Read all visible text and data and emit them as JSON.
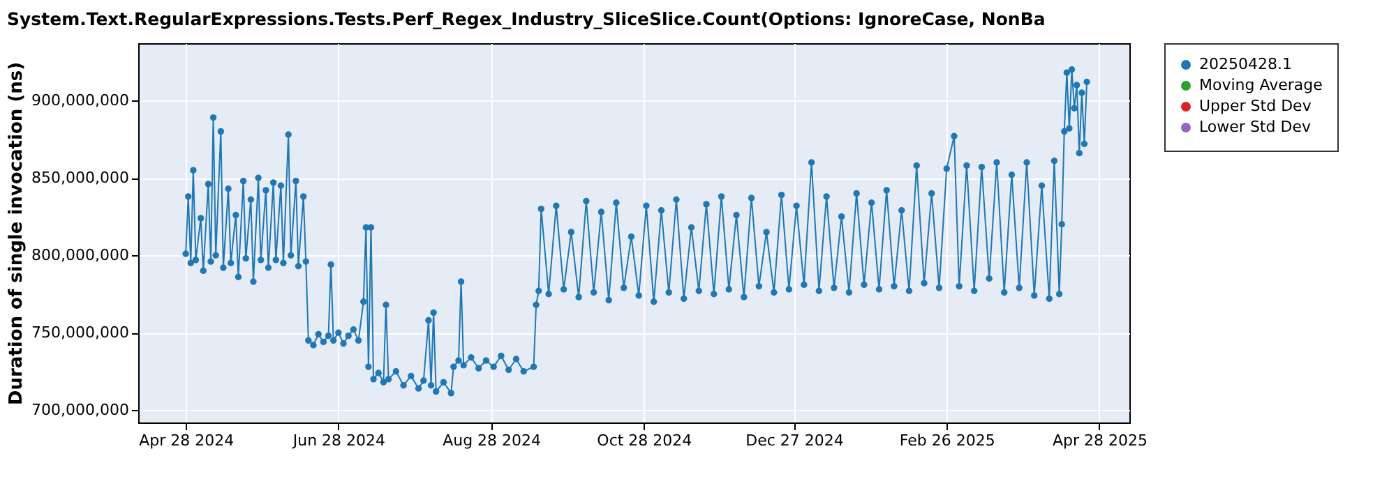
{
  "chart_data": {
    "type": "line",
    "title": "System.Text.RegularExpressions.Tests.Perf_Regex_Industry_SliceSlice.Count(Options: IgnoreCase, NonBa",
    "ylabel": "Duration of single invocation (ns)",
    "x": [
      "2024-04-28",
      "2024-04-29",
      "2024-04-30",
      "2024-05-01",
      "2024-05-02",
      "2024-05-04",
      "2024-05-05",
      "2024-05-07",
      "2024-05-08",
      "2024-05-09",
      "2024-05-10",
      "2024-05-12",
      "2024-05-13",
      "2024-05-15",
      "2024-05-16",
      "2024-05-18",
      "2024-05-19",
      "2024-05-21",
      "2024-05-22",
      "2024-05-24",
      "2024-05-25",
      "2024-05-27",
      "2024-05-28",
      "2024-05-30",
      "2024-05-31",
      "2024-06-02",
      "2024-06-03",
      "2024-06-05",
      "2024-06-06",
      "2024-06-08",
      "2024-06-09",
      "2024-06-11",
      "2024-06-12",
      "2024-06-14",
      "2024-06-15",
      "2024-06-16",
      "2024-06-18",
      "2024-06-20",
      "2024-06-22",
      "2024-06-24",
      "2024-06-25",
      "2024-06-26",
      "2024-06-28",
      "2024-06-30",
      "2024-07-02",
      "2024-07-04",
      "2024-07-06",
      "2024-07-08",
      "2024-07-09",
      "2024-07-10",
      "2024-07-11",
      "2024-07-12",
      "2024-07-14",
      "2024-07-16",
      "2024-07-17",
      "2024-07-18",
      "2024-07-21",
      "2024-07-24",
      "2024-07-27",
      "2024-07-30",
      "2024-08-01",
      "2024-08-03",
      "2024-08-04",
      "2024-08-05",
      "2024-08-06",
      "2024-08-09",
      "2024-08-12",
      "2024-08-13",
      "2024-08-15",
      "2024-08-16",
      "2024-08-17",
      "2024-08-20",
      "2024-08-23",
      "2024-08-26",
      "2024-08-29",
      "2024-09-01",
      "2024-09-04",
      "2024-09-07",
      "2024-09-10",
      "2024-09-14",
      "2024-09-15",
      "2024-09-16",
      "2024-09-17",
      "2024-09-20",
      "2024-09-23",
      "2024-09-26",
      "2024-09-29",
      "2024-10-02",
      "2024-10-05",
      "2024-10-08",
      "2024-10-11",
      "2024-10-14",
      "2024-10-17",
      "2024-10-20",
      "2024-10-23",
      "2024-10-26",
      "2024-10-29",
      "2024-11-01",
      "2024-11-04",
      "2024-11-07",
      "2024-11-10",
      "2024-11-13",
      "2024-11-16",
      "2024-11-19",
      "2024-11-22",
      "2024-11-25",
      "2024-11-28",
      "2024-12-01",
      "2024-12-04",
      "2024-12-07",
      "2024-12-10",
      "2024-12-13",
      "2024-12-16",
      "2024-12-19",
      "2024-12-22",
      "2024-12-25",
      "2024-12-28",
      "2024-12-31",
      "2025-01-03",
      "2025-01-06",
      "2025-01-09",
      "2025-01-12",
      "2025-01-15",
      "2025-01-18",
      "2025-01-21",
      "2025-01-24",
      "2025-01-27",
      "2025-01-30",
      "2025-02-02",
      "2025-02-05",
      "2025-02-08",
      "2025-02-11",
      "2025-02-14",
      "2025-02-17",
      "2025-02-20",
      "2025-02-23",
      "2025-02-26",
      "2025-03-01",
      "2025-03-03",
      "2025-03-06",
      "2025-03-09",
      "2025-03-12",
      "2025-03-15",
      "2025-03-18",
      "2025-03-21",
      "2025-03-24",
      "2025-03-27",
      "2025-03-30",
      "2025-04-02",
      "2025-04-05",
      "2025-04-08",
      "2025-04-10",
      "2025-04-12",
      "2025-04-13",
      "2025-04-14",
      "2025-04-15",
      "2025-04-16",
      "2025-04-17",
      "2025-04-18",
      "2025-04-19",
      "2025-04-20",
      "2025-04-21",
      "2025-04-22",
      "2025-04-23"
    ],
    "series": [
      {
        "name": "20250428.1",
        "color": "#1f77b4",
        "values": [
          801000000,
          838000000,
          795000000,
          855000000,
          797000000,
          824000000,
          790000000,
          846000000,
          796000000,
          889000000,
          800000000,
          880000000,
          792000000,
          843000000,
          795000000,
          826000000,
          786000000,
          848000000,
          798000000,
          836000000,
          783000000,
          850000000,
          797000000,
          842000000,
          792000000,
          847000000,
          797000000,
          845000000,
          795000000,
          878000000,
          800000000,
          848000000,
          793000000,
          838000000,
          796000000,
          745000000,
          742000000,
          749000000,
          744000000,
          748000000,
          794000000,
          745000000,
          750000000,
          743000000,
          748000000,
          752000000,
          745000000,
          770000000,
          818000000,
          728000000,
          818000000,
          720000000,
          724000000,
          718000000,
          768000000,
          720000000,
          725000000,
          716000000,
          722000000,
          714000000,
          719000000,
          758000000,
          716000000,
          763000000,
          712000000,
          718000000,
          711000000,
          728000000,
          732000000,
          783000000,
          729000000,
          734000000,
          727000000,
          732000000,
          728000000,
          735000000,
          726000000,
          733000000,
          725000000,
          728000000,
          768000000,
          777000000,
          830000000,
          775000000,
          832000000,
          778000000,
          815000000,
          773000000,
          835000000,
          776000000,
          828000000,
          771000000,
          834000000,
          779000000,
          812000000,
          774000000,
          832000000,
          770000000,
          829000000,
          776000000,
          836000000,
          772000000,
          818000000,
          777000000,
          833000000,
          775000000,
          838000000,
          778000000,
          826000000,
          773000000,
          837000000,
          780000000,
          815000000,
          776000000,
          839000000,
          778000000,
          832000000,
          781000000,
          860000000,
          777000000,
          838000000,
          779000000,
          825000000,
          776000000,
          840000000,
          781000000,
          834000000,
          778000000,
          842000000,
          780000000,
          829000000,
          777000000,
          858000000,
          782000000,
          840000000,
          779000000,
          856000000,
          877000000,
          780000000,
          858000000,
          777000000,
          857000000,
          785000000,
          860000000,
          776000000,
          852000000,
          779000000,
          860000000,
          774000000,
          845000000,
          772000000,
          861000000,
          775000000,
          820000000,
          880000000,
          918000000,
          882000000,
          920000000,
          895000000,
          910000000,
          866000000,
          905000000,
          872000000,
          912000000
        ]
      },
      {
        "name": "Moving Average",
        "color": "#2ca02c",
        "values": [
          null,
          null,
          null,
          null,
          null,
          null,
          null,
          null,
          null,
          null,
          null,
          null,
          null,
          null,
          null,
          null,
          null,
          null,
          null,
          null,
          null,
          null,
          null,
          null,
          null,
          null,
          null,
          null,
          null,
          null,
          null,
          null,
          null,
          null,
          null,
          null,
          null,
          null,
          null,
          null,
          null,
          null,
          null,
          null,
          null,
          null,
          null,
          null,
          null,
          null,
          null,
          null,
          null,
          null,
          null,
          null,
          null,
          null,
          null,
          null,
          null,
          null,
          null,
          null,
          null,
          null,
          null,
          null,
          null,
          null,
          null,
          null,
          null,
          null,
          null,
          null,
          null,
          null,
          null,
          null,
          null,
          null,
          null,
          null,
          null,
          null,
          null,
          null,
          null,
          null,
          null,
          null,
          null,
          null,
          null,
          null,
          null,
          null,
          null,
          null,
          null,
          null,
          null,
          null,
          null,
          null,
          null,
          null,
          null,
          null,
          null,
          null,
          null,
          null,
          null,
          null,
          null,
          null,
          null,
          null,
          null,
          null,
          null,
          null,
          null,
          null,
          null,
          null,
          null,
          null,
          null,
          null,
          null,
          null,
          null,
          null,
          null,
          null,
          null,
          null,
          null,
          null,
          null,
          null,
          null,
          null,
          null,
          null,
          null,
          null,
          null,
          null,
          null,
          null,
          null,
          null,
          null,
          null,
          null,
          null,
          null,
          null,
          null,
          null
        ]
      },
      {
        "name": "Upper Std Dev",
        "color": "#d62728",
        "values": [
          null,
          null,
          null,
          null,
          null,
          null,
          null,
          null,
          null,
          null,
          null,
          null,
          null,
          null,
          null,
          null,
          null,
          null,
          null,
          null,
          null,
          null,
          null,
          null,
          null,
          null,
          null,
          null,
          null,
          null,
          null,
          null,
          null,
          null,
          null,
          null,
          null,
          null,
          null,
          null,
          null,
          null,
          null,
          null,
          null,
          null,
          null,
          null,
          null,
          null,
          null,
          null,
          null,
          null,
          null,
          null,
          null,
          null,
          null,
          null,
          null,
          null,
          null,
          null,
          null,
          null,
          null,
          null,
          null,
          null,
          null,
          null,
          null,
          null,
          null,
          null,
          null,
          null,
          null,
          null,
          null,
          null,
          null,
          null,
          null,
          null,
          null,
          null,
          null,
          null,
          null,
          null,
          null,
          null,
          null,
          null,
          null,
          null,
          null,
          null,
          null,
          null,
          null,
          null,
          null,
          null,
          null,
          null,
          null,
          null,
          null,
          null,
          null,
          null,
          null,
          null,
          null,
          null,
          null,
          null,
          null,
          null,
          null,
          null,
          null,
          null,
          null,
          null,
          null,
          null,
          null,
          null,
          null,
          null,
          null,
          null,
          null,
          null,
          null,
          null,
          null,
          null,
          null,
          null,
          null,
          null,
          null,
          null,
          null,
          null,
          null,
          null,
          null,
          null,
          null,
          null,
          null,
          null,
          null,
          null,
          null,
          null,
          null,
          null
        ]
      },
      {
        "name": "Lower Std Dev",
        "color": "#9467bd",
        "values": [
          null,
          null,
          null,
          null,
          null,
          null,
          null,
          null,
          null,
          null,
          null,
          null,
          null,
          null,
          null,
          null,
          null,
          null,
          null,
          null,
          null,
          null,
          null,
          null,
          null,
          null,
          null,
          null,
          null,
          null,
          null,
          null,
          null,
          null,
          null,
          null,
          null,
          null,
          null,
          null,
          null,
          null,
          null,
          null,
          null,
          null,
          null,
          null,
          null,
          null,
          null,
          null,
          null,
          null,
          null,
          null,
          null,
          null,
          null,
          null,
          null,
          null,
          null,
          null,
          null,
          null,
          null,
          null,
          null,
          null,
          null,
          null,
          null,
          null,
          null,
          null,
          null,
          null,
          null,
          null,
          null,
          null,
          null,
          null,
          null,
          null,
          null,
          null,
          null,
          null,
          null,
          null,
          null,
          null,
          null,
          null,
          null,
          null,
          null,
          null,
          null,
          null,
          null,
          null,
          null,
          null,
          null,
          null,
          null,
          null,
          null,
          null,
          null,
          null,
          null,
          null,
          null,
          null,
          null,
          null,
          null,
          null,
          null,
          null,
          null,
          null,
          null,
          null,
          null,
          null,
          null,
          null,
          null,
          null,
          null,
          null,
          null,
          null,
          null,
          null,
          null,
          null,
          null,
          null,
          null,
          null,
          null,
          null,
          null,
          null,
          null,
          null,
          null,
          null,
          null,
          null,
          null,
          null,
          null,
          null,
          null,
          null,
          null,
          null
        ]
      }
    ],
    "xlim": [
      "2024-04-09",
      "2025-05-10"
    ],
    "xticks": [
      {
        "value": "2024-04-28",
        "label": "Apr 28 2024"
      },
      {
        "value": "2024-06-28",
        "label": "Jun 28 2024"
      },
      {
        "value": "2024-08-28",
        "label": "Aug 28 2024"
      },
      {
        "value": "2024-10-28",
        "label": "Oct 28 2024"
      },
      {
        "value": "2024-12-27",
        "label": "Dec 27 2024"
      },
      {
        "value": "2025-02-26",
        "label": "Feb 26 2025"
      },
      {
        "value": "2025-04-28",
        "label": "Apr 28 2025"
      }
    ],
    "ylim": [
      692000000,
      937000000
    ],
    "yticks": [
      {
        "value": 700000000,
        "label": "700,000,000"
      },
      {
        "value": 750000000,
        "label": "750,000,000"
      },
      {
        "value": 800000000,
        "label": "800,000,000"
      },
      {
        "value": 850000000,
        "label": "850,000,000"
      },
      {
        "value": 900000000,
        "label": "900,000,000"
      }
    ],
    "grid": true,
    "legend": "right",
    "marker": "circle",
    "line_style": "solid"
  }
}
